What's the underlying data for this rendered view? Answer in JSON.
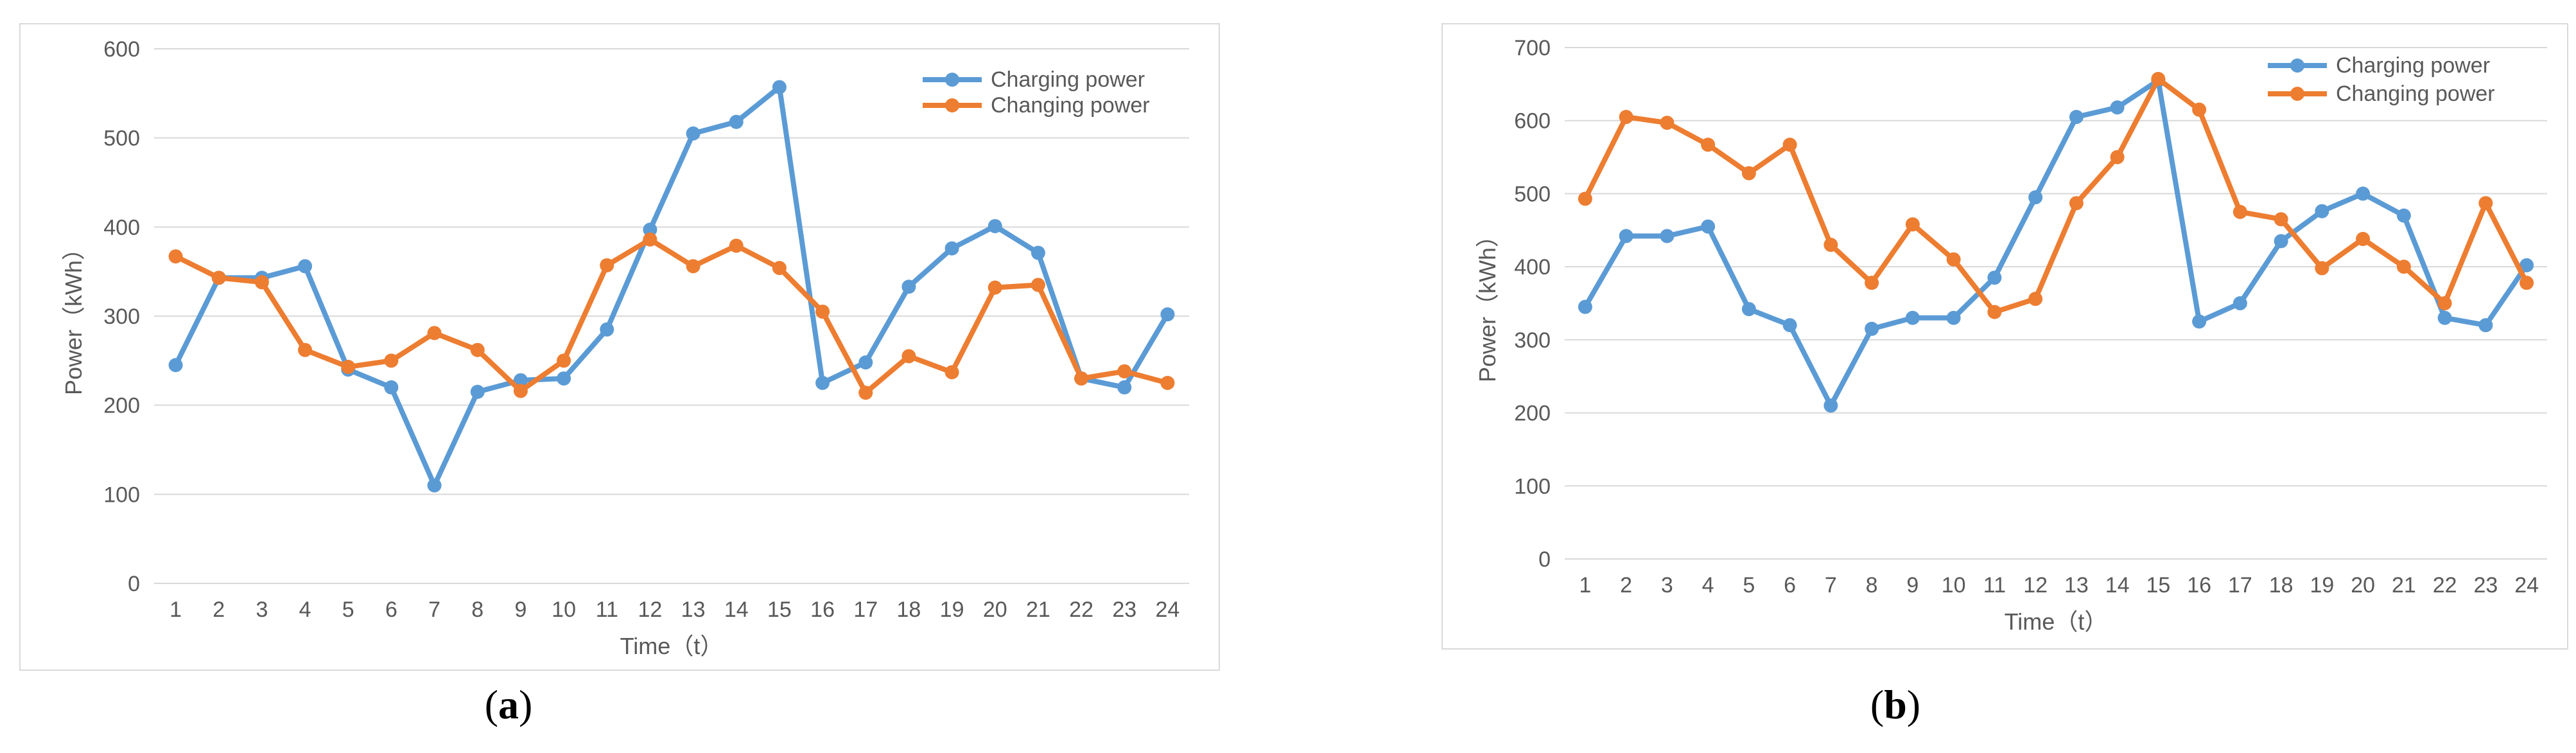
{
  "colors": {
    "charging": "#5b9bd5",
    "changing": "#ed7d31",
    "grid": "#d9d9d9",
    "text": "#595959"
  },
  "captions": [
    {
      "open": "(",
      "letter": "a",
      "close": ")"
    },
    {
      "open": "(",
      "letter": "b",
      "close": ")"
    }
  ],
  "chart_data": [
    {
      "type": "line",
      "title": "",
      "xlabel": "Time（t）",
      "ylabel": "Power（kWh）",
      "categories": [
        "1",
        "2",
        "3",
        "4",
        "5",
        "6",
        "7",
        "8",
        "9",
        "10",
        "11",
        "12",
        "13",
        "14",
        "15",
        "16",
        "17",
        "18",
        "19",
        "20",
        "21",
        "22",
        "23",
        "24"
      ],
      "ylim": [
        0,
        600
      ],
      "yticks": [
        "0",
        "100",
        "200",
        "300",
        "400",
        "500",
        "600"
      ],
      "grid": true,
      "legend": "top-right",
      "series": [
        {
          "name": "Charging power",
          "values": [
            245,
            343,
            343,
            356,
            240,
            220,
            110,
            215,
            228,
            230,
            285,
            397,
            505,
            518,
            557,
            225,
            248,
            333,
            376,
            401,
            371,
            230,
            220,
            302
          ]
        },
        {
          "name": "Changing power",
          "values": [
            367,
            343,
            338,
            262,
            243,
            250,
            281,
            262,
            216,
            250,
            357,
            386,
            356,
            379,
            354,
            305,
            214,
            255,
            237,
            332,
            335,
            230,
            238,
            225
          ]
        }
      ]
    },
    {
      "type": "line",
      "title": "",
      "xlabel": "Time（t）",
      "ylabel": "Power（kWh）",
      "categories": [
        "1",
        "2",
        "3",
        "4",
        "5",
        "6",
        "7",
        "8",
        "9",
        "10",
        "11",
        "12",
        "13",
        "14",
        "15",
        "16",
        "17",
        "18",
        "19",
        "20",
        "21",
        "22",
        "23",
        "24"
      ],
      "ylim": [
        0,
        700
      ],
      "yticks": [
        "0",
        "100",
        "200",
        "300",
        "400",
        "500",
        "600",
        "700"
      ],
      "grid": true,
      "legend": "top-right",
      "series": [
        {
          "name": "Charging power",
          "values": [
            345,
            442,
            442,
            455,
            342,
            320,
            210,
            315,
            330,
            330,
            385,
            495,
            605,
            618,
            655,
            325,
            350,
            435,
            476,
            500,
            470,
            330,
            320,
            402
          ]
        },
        {
          "name": "Changing power",
          "values": [
            493,
            605,
            597,
            567,
            528,
            567,
            430,
            378,
            458,
            410,
            338,
            356,
            487,
            550,
            657,
            615,
            475,
            465,
            398,
            438,
            400,
            350,
            487,
            378
          ]
        }
      ]
    }
  ]
}
